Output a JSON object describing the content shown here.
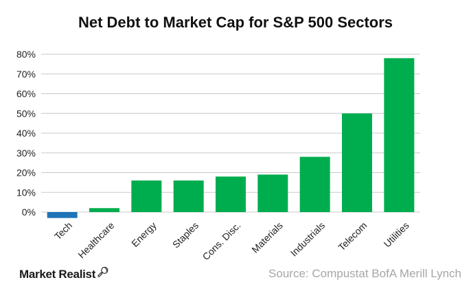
{
  "chart_data": {
    "type": "bar",
    "title": "Net Debt to Market Cap for S&P 500 Sectors",
    "categories": [
      "Tech",
      "Healthcare",
      "Energy",
      "Staples",
      "Cons. Disc.",
      "Materials",
      "Industrials",
      "Telecom",
      "Utilities"
    ],
    "values": [
      -3,
      2,
      16,
      16,
      18,
      19,
      28,
      50,
      78
    ],
    "unit": "%",
    "ylim": [
      0,
      80
    ],
    "yticks": [
      "0%",
      "10%",
      "20%",
      "30%",
      "40%",
      "50%",
      "60%",
      "70%",
      "80%"
    ],
    "grid": true,
    "colors": {
      "positive": "#00ad4e",
      "negative": "#1f73b7",
      "grid": "#c8c8c8"
    }
  },
  "footer": {
    "brand": "Market Realist",
    "brand_icon": "magnifier-icon",
    "source": "Source: Compustat BofA Merill Lynch"
  }
}
